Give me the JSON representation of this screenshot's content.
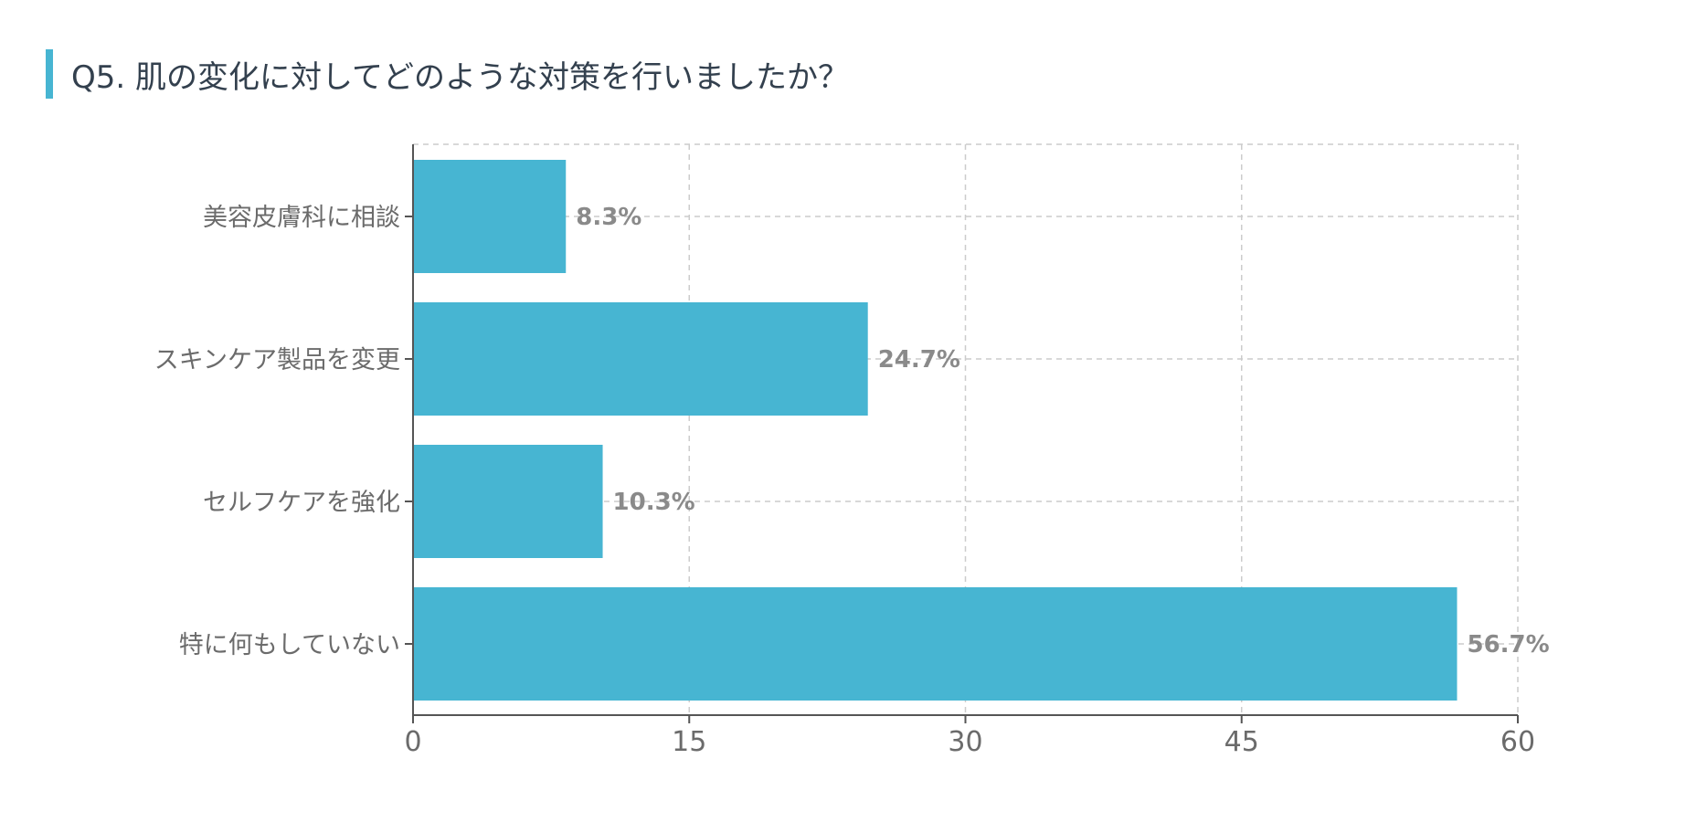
{
  "header": {
    "title": "Q5. 肌の変化に対してどのような対策を行いましたか？"
  },
  "colors": {
    "bar": "#47b5d2",
    "accent": "#47b5d2",
    "grid": "#cccccc",
    "axis": "#555555",
    "label": "#6b6b6b",
    "data_label": "#8a8a8a"
  },
  "chart_data": {
    "type": "bar",
    "orientation": "horizontal",
    "categories": [
      "美容皮膚科に相談",
      "スキンケア製品を変更",
      "セルフケアを強化",
      "特に何もしていない"
    ],
    "values": [
      8.3,
      24.7,
      10.3,
      56.7
    ],
    "data_labels": [
      "8.3%",
      "24.7%",
      "10.3%",
      "56.7%"
    ],
    "xlim": [
      0,
      60
    ],
    "xticks": [
      0,
      15,
      30,
      45,
      60
    ],
    "xtick_labels": [
      "0",
      "15",
      "30",
      "45",
      "60"
    ],
    "grid": true,
    "grid_style": "dashed",
    "legend": "none"
  }
}
